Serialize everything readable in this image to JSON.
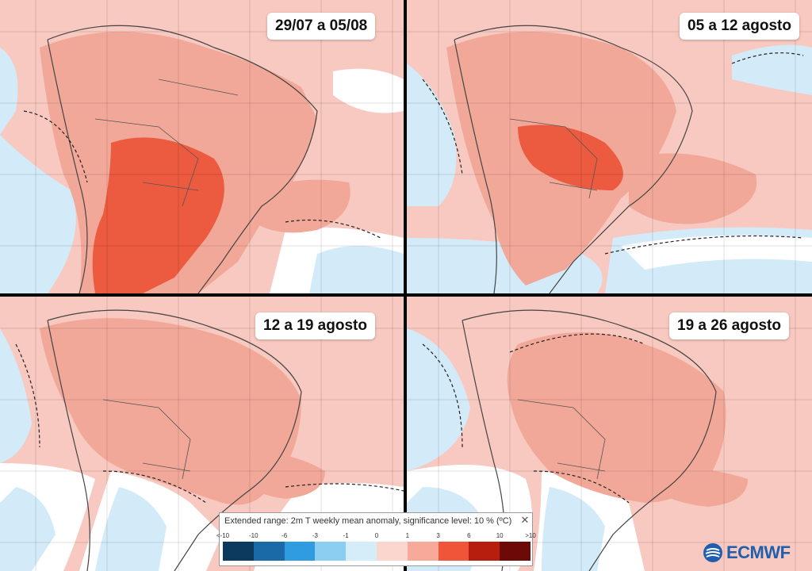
{
  "panels": [
    {
      "title": "29/07 a 05/08"
    },
    {
      "title": "05 a 12 agosto"
    },
    {
      "title": "12 a 19 agosto"
    },
    {
      "title": "19 a 26 agosto"
    }
  ],
  "legend": {
    "title": "Extended range: 2m T weekly mean anomaly, significance level: 10 % (ºC)",
    "tick_labels": [
      "<-10",
      "-10",
      "-6",
      "-3",
      "-1",
      "0",
      "1",
      "3",
      "6",
      "10",
      ">10"
    ],
    "colors": [
      "#0b3a5e",
      "#1a6aa8",
      "#2f9be0",
      "#8ccdf2",
      "#d5ecf9",
      "#fbd6cf",
      "#f7a99a",
      "#f0553a",
      "#b81e0d",
      "#6b0a06"
    ]
  },
  "logo": {
    "text": "ECMWF"
  },
  "colors": {
    "ocean_pos": "#f7c5bc",
    "land_pos": "#f2a899",
    "hot": "#ec5a3f",
    "cool": "#cfe8f8",
    "neutral": "#ffffff"
  }
}
